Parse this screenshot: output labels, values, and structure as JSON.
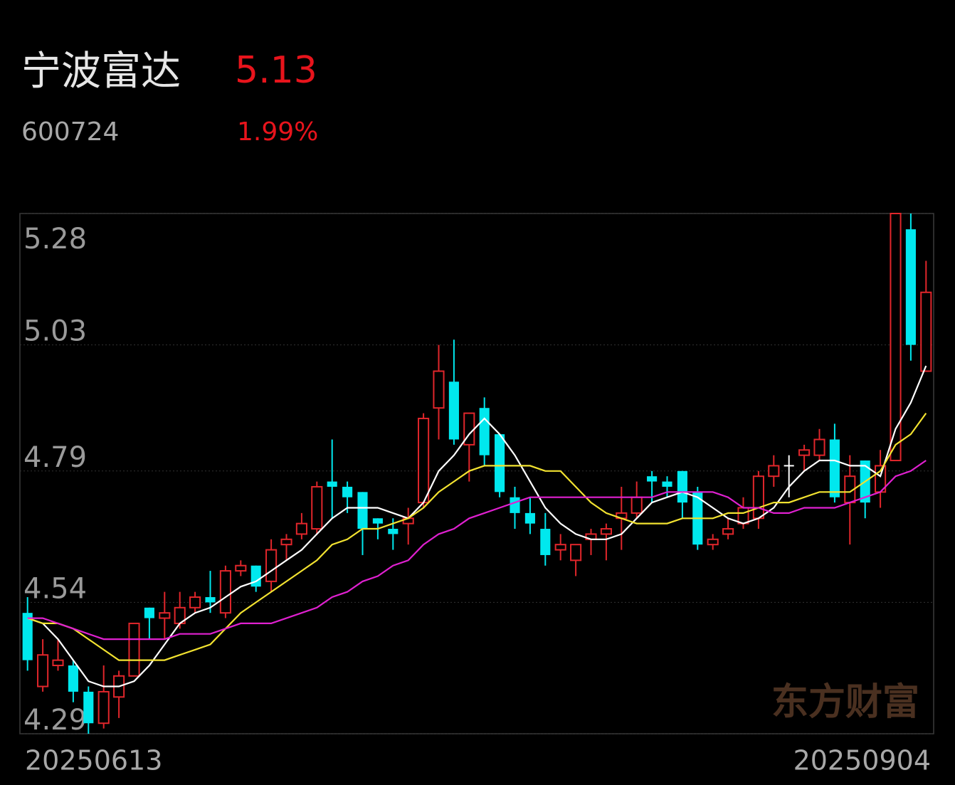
{
  "header": {
    "name": "宁波富达",
    "price": "5.13",
    "code": "600724",
    "change_pct": "1.99%"
  },
  "chart_data": {
    "type": "candlestick",
    "categories": [
      "20250613",
      null,
      null,
      null,
      null,
      null,
      null,
      null,
      null,
      null,
      null,
      null,
      null,
      null,
      null,
      null,
      null,
      null,
      null,
      null,
      null,
      null,
      null,
      null,
      null,
      null,
      null,
      null,
      null,
      null,
      null,
      null,
      null,
      null,
      null,
      null,
      null,
      null,
      null,
      null,
      null,
      null,
      null,
      null,
      null,
      null,
      null,
      null,
      null,
      null,
      null,
      null,
      null,
      null,
      null,
      null,
      null,
      null,
      null,
      "20250904"
    ],
    "open": [
      4.52,
      4.38,
      4.42,
      4.42,
      4.37,
      4.31,
      4.36,
      4.4,
      4.53,
      4.51,
      4.5,
      4.53,
      4.55,
      4.52,
      4.6,
      4.61,
      4.58,
      4.65,
      4.67,
      4.68,
      4.77,
      4.76,
      4.75,
      4.7,
      4.68,
      4.69,
      4.73,
      4.91,
      4.96,
      4.84,
      4.91,
      4.86,
      4.74,
      4.71,
      4.68,
      4.64,
      4.62,
      4.66,
      4.67,
      4.7,
      4.71,
      4.78,
      4.77,
      4.79,
      4.75,
      4.65,
      4.67,
      4.69,
      4.7,
      4.78,
      4.8,
      4.82,
      4.82,
      4.85,
      4.73,
      4.81,
      4.75,
      4.81,
      5.25,
      4.98
    ],
    "high": [
      4.55,
      4.47,
      4.47,
      4.43,
      4.38,
      4.42,
      4.41,
      4.5,
      4.53,
      4.56,
      4.56,
      4.56,
      4.6,
      4.61,
      4.62,
      4.61,
      4.66,
      4.67,
      4.71,
      4.77,
      4.85,
      4.77,
      4.75,
      4.7,
      4.7,
      4.72,
      4.9,
      5.03,
      5.04,
      4.9,
      4.93,
      4.86,
      4.76,
      4.74,
      4.71,
      4.67,
      4.65,
      4.68,
      4.69,
      4.76,
      4.77,
      4.79,
      4.78,
      4.79,
      4.76,
      4.67,
      4.7,
      4.74,
      4.79,
      4.82,
      4.82,
      4.84,
      4.87,
      4.88,
      4.82,
      4.81,
      4.83,
      5.28,
      5.28,
      5.19
    ],
    "low": [
      4.41,
      4.37,
      4.41,
      4.35,
      4.29,
      4.3,
      4.32,
      4.4,
      4.47,
      4.47,
      4.49,
      4.52,
      4.52,
      4.51,
      4.59,
      4.56,
      4.56,
      4.62,
      4.66,
      4.67,
      4.7,
      4.71,
      4.63,
      4.66,
      4.64,
      4.65,
      4.72,
      4.85,
      4.84,
      4.77,
      4.8,
      4.74,
      4.68,
      4.67,
      4.61,
      4.62,
      4.59,
      4.63,
      4.62,
      4.64,
      4.7,
      4.73,
      4.74,
      4.7,
      4.64,
      4.64,
      4.66,
      4.68,
      4.68,
      4.76,
      4.74,
      4.79,
      4.81,
      4.73,
      4.65,
      4.7,
      4.72,
      4.81,
      5.0,
      4.98
    ],
    "close": [
      4.43,
      4.44,
      4.43,
      4.37,
      4.31,
      4.37,
      4.4,
      4.5,
      4.51,
      4.52,
      4.53,
      4.55,
      4.54,
      4.6,
      4.61,
      4.57,
      4.64,
      4.66,
      4.69,
      4.76,
      4.76,
      4.74,
      4.68,
      4.69,
      4.67,
      4.7,
      4.89,
      4.98,
      4.85,
      4.9,
      4.82,
      4.75,
      4.71,
      4.69,
      4.63,
      4.65,
      4.65,
      4.67,
      4.68,
      4.71,
      4.74,
      4.77,
      4.76,
      4.73,
      4.65,
      4.66,
      4.68,
      4.72,
      4.78,
      4.8,
      4.8,
      4.83,
      4.85,
      4.74,
      4.78,
      4.73,
      4.8,
      5.28,
      5.03,
      5.13
    ],
    "up_color": "#e0262b",
    "down_color": "#00e8ee",
    "flat_color": "#ffffff",
    "lines": [
      {
        "color": "#ffffff",
        "values": [
          4.51,
          4.5,
          4.47,
          4.43,
          4.39,
          4.38,
          4.38,
          4.39,
          4.42,
          4.46,
          4.5,
          4.52,
          4.53,
          4.55,
          4.57,
          4.58,
          4.6,
          4.62,
          4.64,
          4.67,
          4.7,
          4.72,
          4.72,
          4.72,
          4.71,
          4.7,
          4.73,
          4.79,
          4.82,
          4.86,
          4.89,
          4.86,
          4.82,
          4.77,
          4.72,
          4.69,
          4.67,
          4.66,
          4.66,
          4.67,
          4.7,
          4.73,
          4.74,
          4.75,
          4.74,
          4.72,
          4.7,
          4.69,
          4.7,
          4.72,
          4.76,
          4.79,
          4.81,
          4.81,
          4.8,
          4.8,
          4.78,
          4.87,
          4.92,
          4.99
        ]
      },
      {
        "color": "#f2e230",
        "values": [
          4.51,
          4.5,
          4.5,
          4.49,
          4.47,
          4.45,
          4.43,
          4.43,
          4.43,
          4.43,
          4.44,
          4.45,
          4.46,
          4.49,
          4.52,
          4.54,
          4.56,
          4.58,
          4.6,
          4.62,
          4.65,
          4.66,
          4.68,
          4.68,
          4.69,
          4.7,
          4.72,
          4.75,
          4.77,
          4.79,
          4.8,
          4.8,
          4.8,
          4.8,
          4.79,
          4.79,
          4.76,
          4.73,
          4.71,
          4.7,
          4.69,
          4.69,
          4.69,
          4.7,
          4.7,
          4.7,
          4.71,
          4.71,
          4.72,
          4.73,
          4.73,
          4.74,
          4.75,
          4.75,
          4.75,
          4.77,
          4.79,
          4.84,
          4.86,
          4.9
        ]
      },
      {
        "color": "#e020d0",
        "values": [
          4.51,
          4.51,
          4.5,
          4.49,
          4.48,
          4.47,
          4.47,
          4.47,
          4.47,
          4.47,
          4.48,
          4.48,
          4.48,
          4.49,
          4.5,
          4.5,
          4.5,
          4.51,
          4.52,
          4.53,
          4.55,
          4.56,
          4.58,
          4.59,
          4.61,
          4.62,
          4.65,
          4.67,
          4.68,
          4.7,
          4.71,
          4.72,
          4.73,
          4.74,
          4.74,
          4.74,
          4.74,
          4.74,
          4.74,
          4.74,
          4.74,
          4.74,
          4.75,
          4.75,
          4.75,
          4.75,
          4.74,
          4.72,
          4.72,
          4.71,
          4.71,
          4.72,
          4.72,
          4.72,
          4.73,
          4.74,
          4.75,
          4.78,
          4.79,
          4.81
        ]
      }
    ],
    "ylim": [
      4.29,
      5.28
    ],
    "yticks": [
      5.28,
      5.03,
      4.79,
      4.54,
      4.29
    ],
    "grid": true,
    "watermark": "东方财富"
  }
}
